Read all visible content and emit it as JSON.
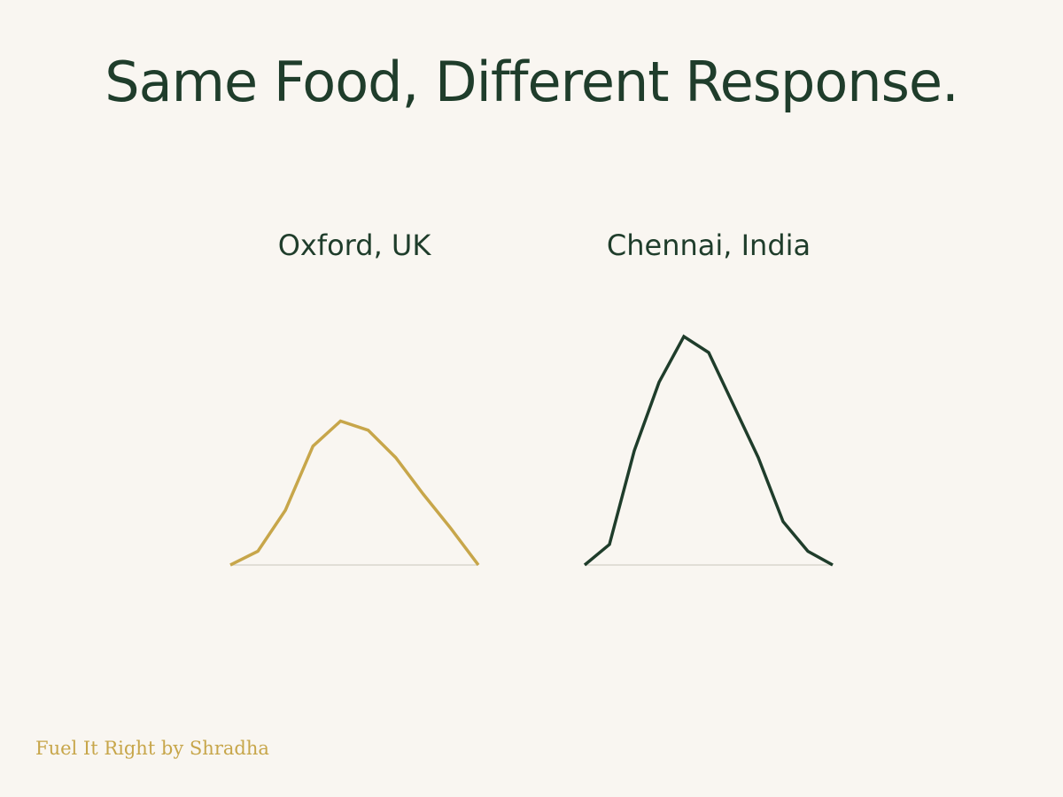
{
  "header": {
    "title": "Same Food, Different Response."
  },
  "footer": {
    "brand": "Fuel It Right by Shradha"
  },
  "colors": {
    "background": "#f9f6f1",
    "text": "#1f3d2b",
    "oxford": "#c7a64a",
    "chennai": "#1f3d2b",
    "baseline": "#d9d5ce"
  },
  "chart_data": [
    {
      "type": "line",
      "title": "Oxford, UK",
      "x": [
        0,
        1,
        2,
        3,
        4,
        5,
        6,
        7,
        8,
        9
      ],
      "y": [
        0,
        6,
        24,
        52,
        63,
        59,
        47,
        31,
        16,
        0
      ],
      "ylim": [
        0,
        100
      ],
      "grid": false,
      "color": "#c7a64a"
    },
    {
      "type": "line",
      "title": "Chennai, India",
      "x": [
        0,
        1,
        2,
        3,
        4,
        5,
        6,
        7,
        8,
        9,
        10
      ],
      "y": [
        0,
        9,
        50,
        80,
        100,
        93,
        70,
        47,
        19,
        6,
        0
      ],
      "ylim": [
        0,
        100
      ],
      "grid": false,
      "color": "#1f3d2b"
    }
  ]
}
